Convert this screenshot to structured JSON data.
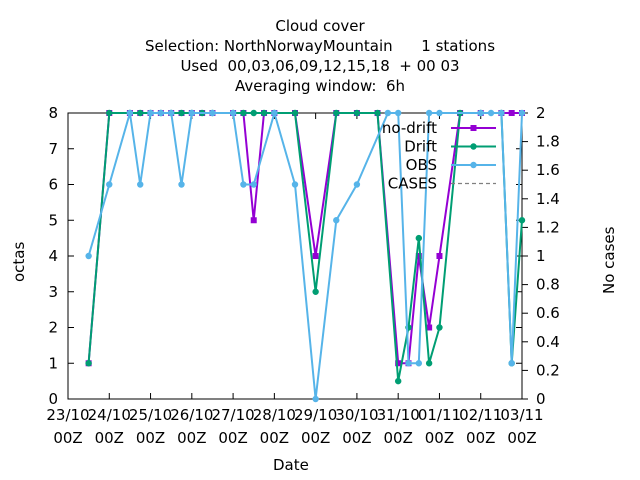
{
  "chart_data": {
    "type": "line",
    "title_lines": [
      "Cloud cover",
      "Selection: NorthNorwayMountain      1 stations",
      "Used  00,03,06,09,12,15,18  + 00 03",
      "Averaging window:  6h"
    ],
    "xlabel": "Date",
    "ylabel": "octas",
    "y2label": "No cases",
    "xlim": [
      0,
      11
    ],
    "ylim": [
      0,
      8
    ],
    "y2lim": [
      0,
      2
    ],
    "x_ticks": [
      0,
      1,
      2,
      3,
      4,
      5,
      6,
      7,
      8,
      9,
      10,
      11
    ],
    "x_tick_labels": [
      [
        "23/10",
        "00Z"
      ],
      [
        "24/10",
        "00Z"
      ],
      [
        "25/10",
        "00Z"
      ],
      [
        "26/10",
        "00Z"
      ],
      [
        "27/10",
        "00Z"
      ],
      [
        "28/10",
        "00Z"
      ],
      [
        "29/10",
        "00Z"
      ],
      [
        "30/10",
        "00Z"
      ],
      [
        "31/10",
        "00Z"
      ],
      [
        "01/11",
        "00Z"
      ],
      [
        "02/11",
        "00Z"
      ],
      [
        "03/11",
        "00Z"
      ]
    ],
    "y_ticks": [
      0,
      1,
      2,
      3,
      4,
      5,
      6,
      7,
      8
    ],
    "y2_ticks": [
      "0",
      "0.2",
      "0.4",
      "0.6",
      "0.8",
      "1",
      "1.2",
      "1.4",
      "1.6",
      "1.8",
      "2"
    ],
    "legend_position": "top-right",
    "grid": false,
    "series": [
      {
        "name": "no-drift",
        "color": "#9400d3",
        "marker": "square",
        "x": [
          0.5,
          1.0,
          1.5,
          1.75,
          2.0,
          2.25,
          2.5,
          2.75,
          3.0,
          3.25,
          3.5,
          4.0,
          4.25,
          4.5,
          4.75,
          5.0,
          5.5,
          6.0,
          6.5,
          7.0,
          7.5,
          8.0,
          8.25,
          8.5,
          8.75,
          9.0,
          9.5,
          10.0,
          10.5,
          10.75,
          11.0
        ],
        "y": [
          1,
          8,
          8,
          8,
          8,
          8,
          8,
          8,
          8,
          8,
          8,
          8,
          8,
          5,
          8,
          8,
          8,
          4,
          8,
          8,
          8,
          1,
          1,
          4,
          2,
          4,
          8,
          8,
          8,
          8,
          8
        ]
      },
      {
        "name": "Drift",
        "color": "#009e73",
        "marker": "circle",
        "x": [
          0.5,
          1.0,
          1.5,
          1.75,
          2.0,
          2.25,
          2.5,
          2.75,
          3.0,
          3.25,
          3.5,
          4.0,
          4.25,
          4.5,
          4.75,
          5.0,
          5.5,
          6.0,
          6.5,
          7.0,
          7.5,
          8.0,
          8.25,
          8.5,
          8.75,
          9.0,
          9.5,
          10.0,
          10.5,
          10.75,
          11.0
        ],
        "y": [
          1,
          8,
          8,
          8,
          8,
          8,
          8,
          8,
          8,
          8,
          8,
          8,
          8,
          8,
          8,
          8,
          8,
          3,
          8,
          8,
          8,
          0.5,
          2,
          4.5,
          1,
          2,
          8,
          8,
          8,
          1,
          5
        ]
      },
      {
        "name": "OBS",
        "color": "#56b4e9",
        "marker": "circle",
        "x": [
          0.5,
          1.0,
          1.5,
          1.75,
          2.0,
          2.25,
          2.5,
          2.75,
          3.0,
          3.5,
          4.0,
          4.25,
          4.5,
          5.0,
          5.5,
          6.0,
          6.5,
          7.0,
          7.75,
          8.0,
          8.25,
          8.5,
          8.75,
          9.0,
          10.0,
          10.25,
          10.5,
          10.75,
          11.0
        ],
        "y": [
          4,
          6,
          8,
          6,
          8,
          8,
          8,
          6,
          8,
          8,
          8,
          6,
          6,
          8,
          6,
          0,
          5,
          6,
          8,
          8,
          1,
          1,
          8,
          8,
          8,
          8,
          8,
          1,
          8
        ]
      },
      {
        "name": "CASES",
        "color": "#808080",
        "marker": "none",
        "dash": true,
        "axis": "y2",
        "x": [],
        "y": []
      }
    ]
  }
}
